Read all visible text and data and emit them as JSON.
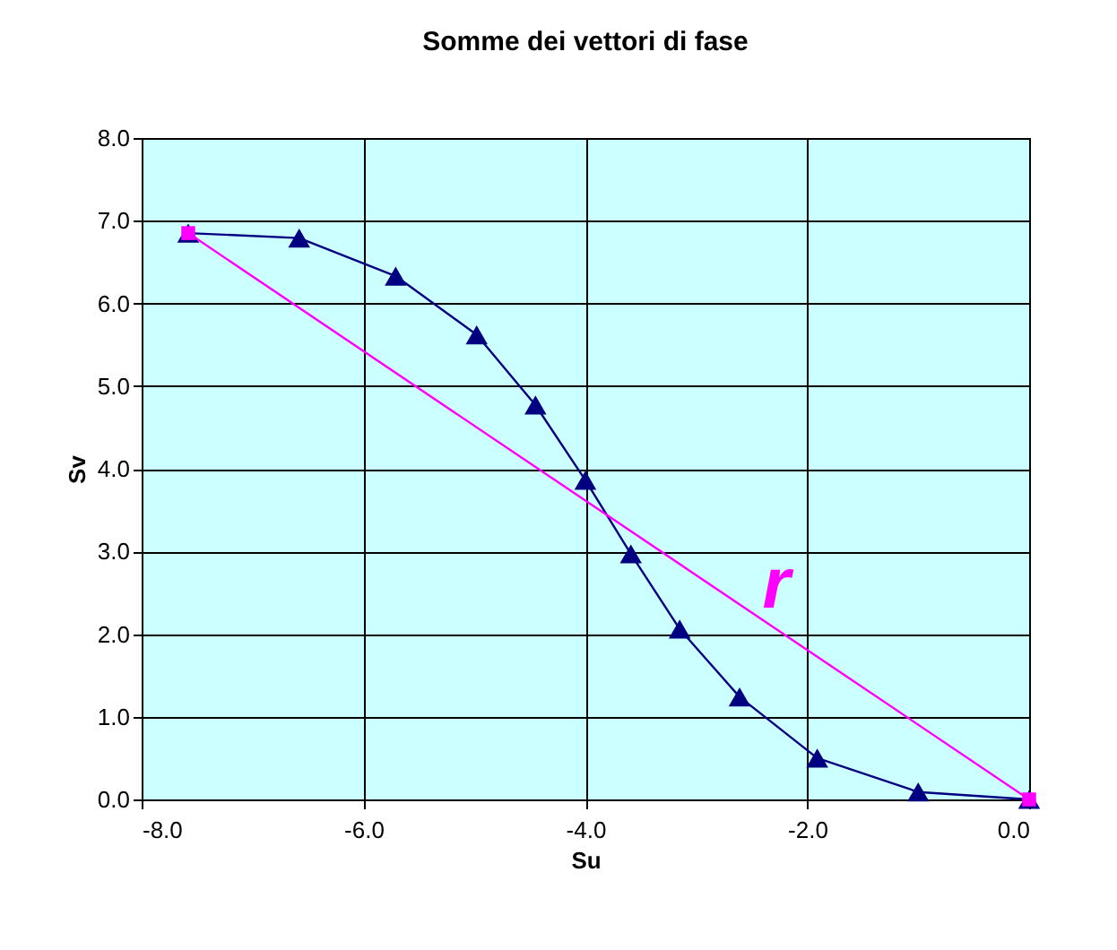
{
  "chart_data": {
    "type": "line",
    "title": "Somme dei vettori di fase",
    "xlabel": "Su",
    "ylabel": "Sv",
    "xlim": [
      -8,
      0
    ],
    "ylim": [
      0,
      8
    ],
    "xticks": [
      {
        "value": -8,
        "label": "-8.0"
      },
      {
        "value": -6,
        "label": "-6.0"
      },
      {
        "value": -4,
        "label": "-4.0"
      },
      {
        "value": -2,
        "label": "-2.0"
      },
      {
        "value": 0,
        "label": "0.0"
      }
    ],
    "yticks": [
      {
        "value": 0,
        "label": "0.0"
      },
      {
        "value": 1,
        "label": "1.0"
      },
      {
        "value": 2,
        "label": "2.0"
      },
      {
        "value": 3,
        "label": "3.0"
      },
      {
        "value": 4,
        "label": "4.0"
      },
      {
        "value": 5,
        "label": "5.0"
      },
      {
        "value": 6,
        "label": "6.0"
      },
      {
        "value": 7,
        "label": "7.0"
      },
      {
        "value": 8,
        "label": "8.0"
      }
    ],
    "grid": true,
    "series": [
      {
        "color": "#000080",
        "marker": "triangle",
        "x": [
          -7.58,
          -6.58,
          -5.71,
          -4.98,
          -4.45,
          -4.0,
          -3.59,
          -3.15,
          -2.61,
          -1.91,
          -1.0,
          0
        ],
        "values": [
          6.85,
          6.79,
          6.33,
          5.62,
          4.77,
          3.86,
          2.97,
          2.06,
          1.24,
          0.5,
          0.09,
          0
        ]
      },
      {
        "color": "#ff00ff",
        "marker": "square",
        "x": [
          -7.58,
          0
        ],
        "values": [
          6.85,
          0
        ]
      }
    ],
    "annotations": [
      "r"
    ]
  }
}
